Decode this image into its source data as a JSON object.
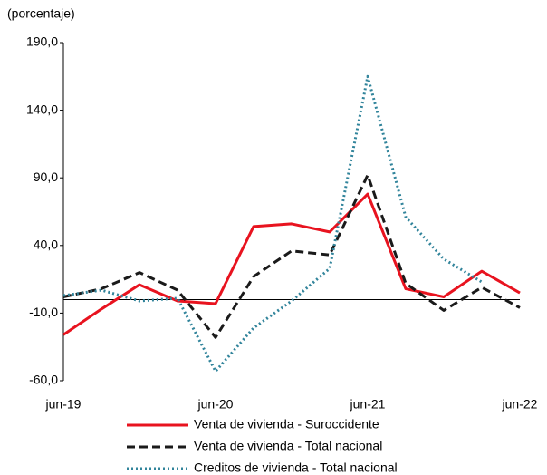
{
  "chart_data": {
    "type": "line",
    "subtitle": "(porcentaje)",
    "categories": [
      "jun-19",
      null,
      null,
      null,
      "jun-20",
      null,
      null,
      null,
      "jun-21",
      null,
      null,
      null,
      "jun-22"
    ],
    "series": [
      {
        "name": "Venta de vivienda - Suroccidente",
        "color": "#e8131f",
        "style": "solid",
        "values": [
          -26,
          -7,
          11,
          -1,
          -3,
          54,
          56,
          50,
          78,
          8,
          2,
          21,
          5
        ]
      },
      {
        "name": "Venta de vivienda - Total nacional",
        "color": "#1a1a1a",
        "style": "dashed",
        "values": [
          2,
          8,
          20,
          7,
          -28,
          17,
          36,
          33,
          92,
          12,
          -8,
          9,
          -6
        ]
      },
      {
        "name": "Creditos de vivienda - Total nacional",
        "color": "#31849b",
        "style": "dotted",
        "values": [
          3,
          7,
          -1,
          1,
          -53,
          -21,
          -1,
          23,
          165,
          61,
          30,
          13,
          null
        ]
      }
    ],
    "ylim": [
      -60,
      190
    ],
    "yticks": [
      {
        "value": -60,
        "label": "-60,0"
      },
      {
        "value": -10,
        "label": "-10,0"
      },
      {
        "value": 40,
        "label": "40,0"
      },
      {
        "value": 90,
        "label": "90,0"
      },
      {
        "value": 140,
        "label": "140,0"
      },
      {
        "value": 190,
        "label": "190,0"
      }
    ]
  }
}
